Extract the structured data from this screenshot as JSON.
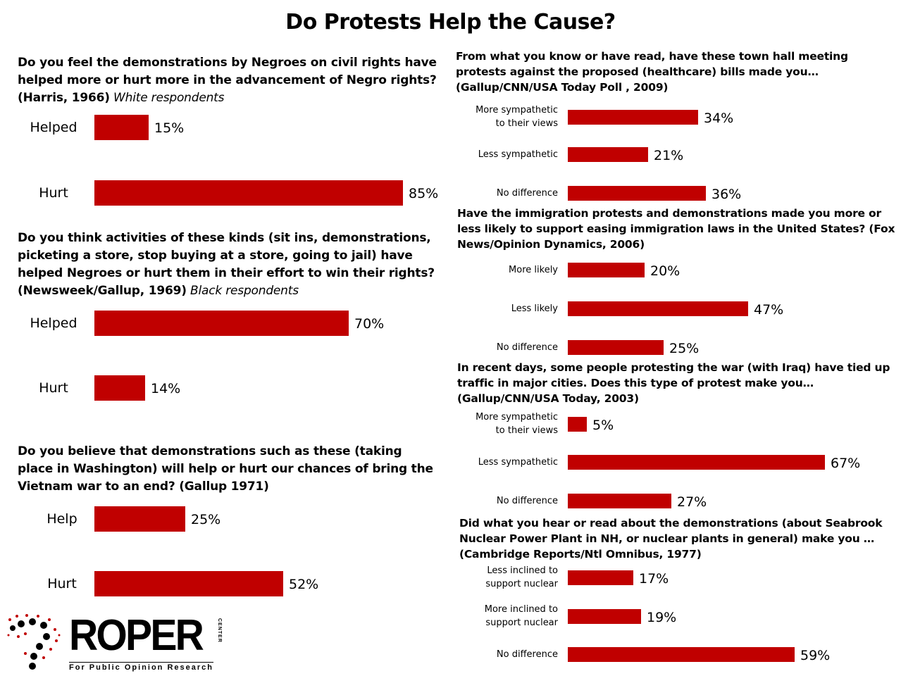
{
  "title": "Do Protests Help the Cause?",
  "logo": {
    "name": "ROPER",
    "tag": "CENTER",
    "subtitle": "For Public Opinion Research"
  },
  "colors": {
    "bar": "#c00000"
  },
  "chart_data": [
    {
      "type": "bar",
      "question": "Do you feel the demonstrations  by Negroes on civil rights have helped more or hurt more in the advancement of Negro rights?",
      "source": "(Harris,  1966)",
      "note": "White respondents",
      "categories": [
        "Helped",
        "Hurt"
      ],
      "values": [
        15,
        85
      ],
      "value_labels": [
        "15%",
        "85%"
      ]
    },
    {
      "type": "bar",
      "question": "Do you think activities of these kinds (sit ins, demonstrations, picketing a store, stop buying at a store, going to jail) have helped Negroes or hurt them in their effort to win their rights?",
      "source": "(Newsweek/Gallup, 1969)",
      "note": "Black respondents",
      "categories": [
        "Helped",
        "Hurt"
      ],
      "values": [
        70,
        14
      ],
      "value_labels": [
        "70%",
        "14%"
      ]
    },
    {
      "type": "bar",
      "question": "Do you believe that demonstrations  such as these (taking place in Washington)  will help or hurt our chances of bring the Vietnam war to an end? (Gallup 1971)",
      "source": "",
      "note": "",
      "categories": [
        "Help",
        "Hurt"
      ],
      "values": [
        25,
        52
      ],
      "value_labels": [
        "25%",
        "52%"
      ]
    },
    {
      "type": "bar",
      "question": "From what you know or have read, have these town hall meeting protests against the proposed (healthcare) bills made you…\n(Gallup/CNN/USA Today Poll , 2009)",
      "categories": [
        "More sympathetic\nto their views",
        "Less sympathetic",
        "No difference"
      ],
      "values": [
        34,
        21,
        36
      ],
      "value_labels": [
        "34%",
        "21%",
        "36%"
      ]
    },
    {
      "type": "bar",
      "question": "Have the immigration protests and demonstrations made you more or less likely to support easing immigration laws in the United States? (Fox News/Opinion Dynamics, 2006)",
      "categories": [
        "More likely",
        "Less likely",
        "No difference"
      ],
      "values": [
        20,
        47,
        25
      ],
      "value_labels": [
        "20%",
        "47%",
        "25%"
      ]
    },
    {
      "type": "bar",
      "question": "In recent days, some people protesting the war (with Iraq) have tied up traffic in major cities. Does this type of protest make you…\n(Gallup/CNN/USA Today, 2003)",
      "categories": [
        "More sympathetic\nto their views",
        "Less sympathetic",
        "No difference"
      ],
      "values": [
        5,
        67,
        27
      ],
      "value_labels": [
        "5%",
        "67%",
        "27%"
      ]
    },
    {
      "type": "bar",
      "question": "Did what you hear or read about the demonstrations (about Seabrook Nuclear Power Plant in NH, or nuclear plants in general) make you …(Cambridge Reports/Ntl Omnibus, 1977)",
      "categories": [
        "Less inclined to\nsupport nuclear",
        "More inclined to\nsupport nuclear",
        "No difference"
      ],
      "values": [
        17,
        19,
        59
      ],
      "value_labels": [
        "17%",
        "19%",
        "59%"
      ]
    }
  ]
}
